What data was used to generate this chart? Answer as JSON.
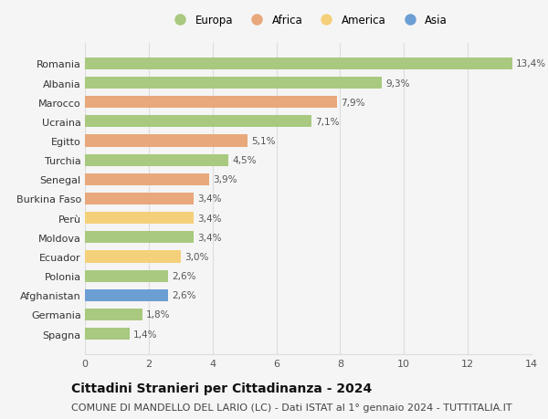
{
  "countries": [
    "Romania",
    "Albania",
    "Marocco",
    "Ucraina",
    "Egitto",
    "Turchia",
    "Senegal",
    "Burkina Faso",
    "Perù",
    "Moldova",
    "Ecuador",
    "Polonia",
    "Afghanistan",
    "Germania",
    "Spagna"
  ],
  "values": [
    13.4,
    9.3,
    7.9,
    7.1,
    5.1,
    4.5,
    3.9,
    3.4,
    3.4,
    3.4,
    3.0,
    2.6,
    2.6,
    1.8,
    1.4
  ],
  "continents": [
    "Europa",
    "Europa",
    "Africa",
    "Europa",
    "Africa",
    "Europa",
    "Africa",
    "Africa",
    "America",
    "Europa",
    "America",
    "Europa",
    "Asia",
    "Europa",
    "Europa"
  ],
  "continent_colors": {
    "Europa": "#a8c97f",
    "Africa": "#e8a87c",
    "America": "#f5d07a",
    "Asia": "#6b9fd4"
  },
  "legend_order": [
    "Europa",
    "Africa",
    "America",
    "Asia"
  ],
  "xlim": [
    0,
    14
  ],
  "xticks": [
    0,
    2,
    4,
    6,
    8,
    10,
    12,
    14
  ],
  "title": "Cittadini Stranieri per Cittadinanza - 2024",
  "subtitle": "COMUNE DI MANDELLO DEL LARIO (LC) - Dati ISTAT al 1° gennaio 2024 - TUTTITALIA.IT",
  "title_fontsize": 10,
  "subtitle_fontsize": 8,
  "background_color": "#f5f5f5",
  "bar_label_fontsize": 7.5,
  "ytick_fontsize": 8,
  "xtick_fontsize": 8,
  "bar_height": 0.62,
  "legend_fontsize": 8.5,
  "grid_color": "#dddddd",
  "label_color": "#555555"
}
